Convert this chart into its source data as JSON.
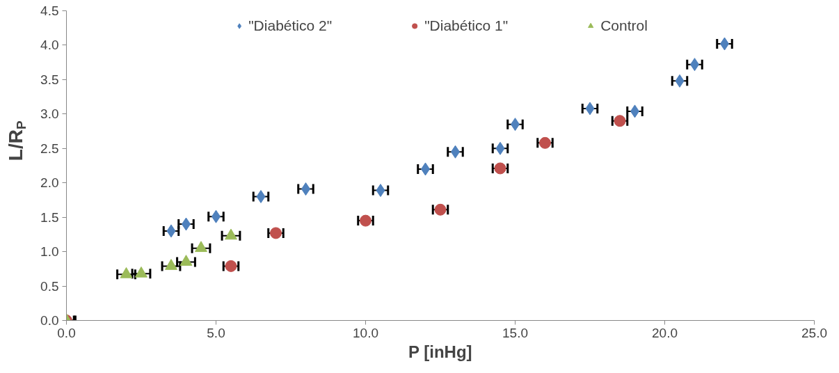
{
  "chart_data": {
    "type": "scatter",
    "xlabel": "P [inHg]",
    "ylabel": "L/R$_{P}$",
    "xlim": [
      0,
      25
    ],
    "ylim": [
      0,
      4.5
    ],
    "xticks": [
      {
        "value": 0,
        "label": "0.0"
      },
      {
        "value": 5,
        "label": "5.0"
      },
      {
        "value": 10,
        "label": "10.0"
      },
      {
        "value": 15,
        "label": "15.0"
      },
      {
        "value": 20,
        "label": "20.0"
      },
      {
        "value": 25,
        "label": "25.0"
      }
    ],
    "yticks": [
      {
        "value": 0,
        "label": "0.0"
      },
      {
        "value": 0.5,
        "label": "0.5"
      },
      {
        "value": 1,
        "label": "1.0"
      },
      {
        "value": 1.5,
        "label": "1.5"
      },
      {
        "value": 2,
        "label": "2.0"
      },
      {
        "value": 2.5,
        "label": "2.5"
      },
      {
        "value": 3,
        "label": "3.0"
      },
      {
        "value": 3.5,
        "label": "3.5"
      },
      {
        "value": 4,
        "label": "4.0"
      },
      {
        "value": 4.5,
        "label": "4.5"
      }
    ],
    "grid": false,
    "legend": "top",
    "series": [
      {
        "name": "\"Diabético 2\"",
        "color": "#4f81bd",
        "marker": "diamond",
        "x": [
          3.5,
          4.0,
          5.0,
          6.5,
          8.0,
          10.5,
          12.0,
          13.0,
          14.5,
          15.0,
          17.5,
          19.0,
          20.5,
          21.0,
          22.0
        ],
        "values": [
          1.3,
          1.4,
          1.51,
          1.8,
          1.91,
          1.89,
          2.2,
          2.45,
          2.5,
          2.85,
          3.08,
          3.04,
          3.48,
          3.72,
          4.02
        ],
        "xerrors": [
          0.25,
          0.25,
          0.25,
          0.25,
          0.25,
          0.25,
          0.25,
          0.25,
          0.25,
          0.25,
          0.25,
          0.25,
          0.25,
          0.25,
          0.25
        ]
      },
      {
        "name": "\"Diabético 1\"",
        "color": "#c0504d",
        "marker": "circle",
        "x": [
          0,
          5.5,
          7.0,
          10.0,
          12.5,
          14.5,
          16.0,
          18.5
        ],
        "values": [
          0,
          0.79,
          1.27,
          1.45,
          1.61,
          2.21,
          2.58,
          2.9
        ],
        "xerrors": [
          0.25,
          0.25,
          0.25,
          0.25,
          0.25,
          0.25,
          0.25,
          0.25
        ]
      },
      {
        "name": "Control",
        "color": "#9bbb59",
        "marker": "triangle",
        "x": [
          0,
          2.0,
          2.5,
          3.5,
          4.0,
          4.5,
          5.5
        ],
        "values": [
          0,
          0.67,
          0.68,
          0.79,
          0.85,
          1.05,
          1.23
        ],
        "xerrors": [
          0.3,
          0.3,
          0.3,
          0.3,
          0.3,
          0.3,
          0.3
        ]
      }
    ]
  }
}
